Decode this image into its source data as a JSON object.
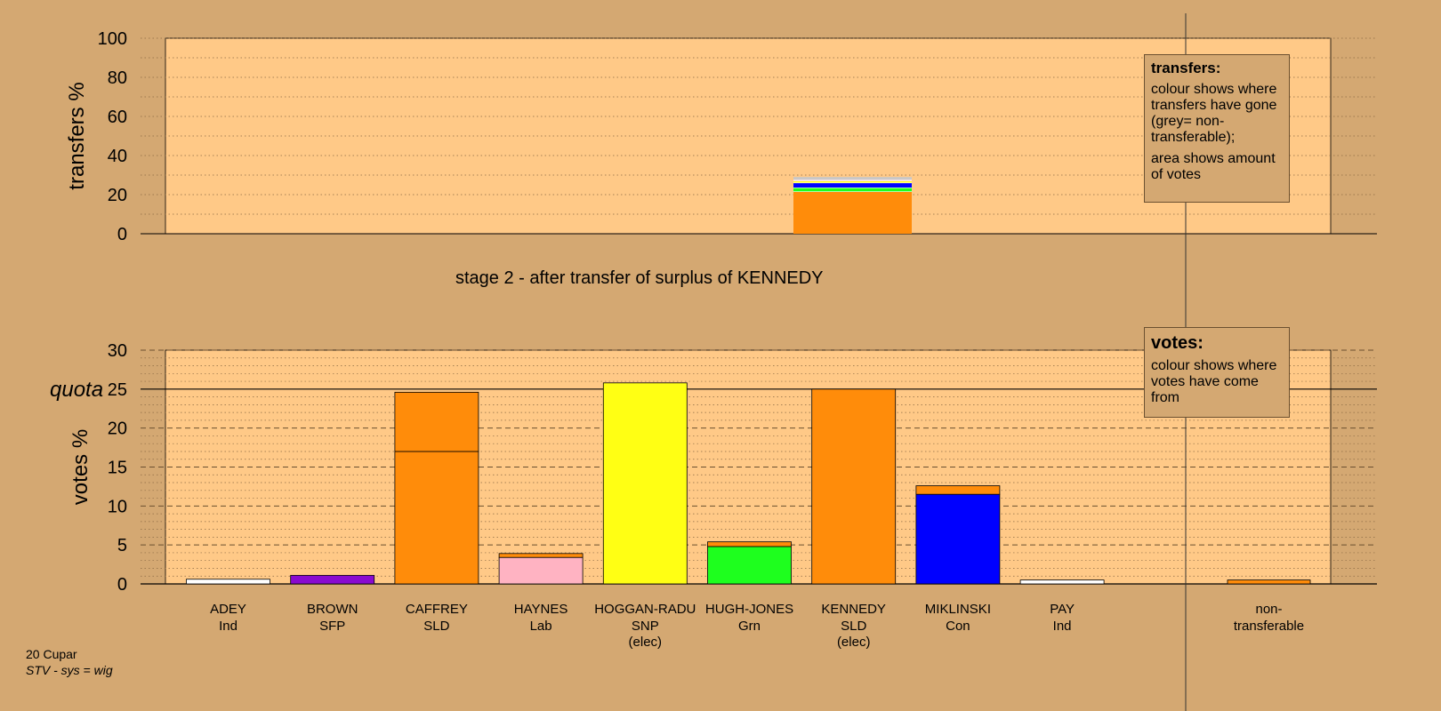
{
  "stage_title": "stage 2 - after transfer of surplus of KENNEDY",
  "footer": {
    "line1": "20 Cupar",
    "line2": "STV - sys = wig"
  },
  "legend_transfers": {
    "title": "transfers:",
    "p1": "colour shows where transfers have gone (grey= non-transferable);",
    "p2": "area shows amount of votes"
  },
  "legend_votes": {
    "title": "votes:",
    "p1": "colour shows where votes have come from"
  },
  "colors": {
    "background": "#d4a872",
    "plot_bg": "#ffc987",
    "SLD": "#ff8c0a",
    "SNP": "#ffff14",
    "Grn": "#1eff1e",
    "Con": "#0000ff",
    "Lab": "#ffb3c2",
    "SFP": "#8a0ad0",
    "Ind": "#ffffff"
  },
  "chart_data": [
    {
      "type": "bar",
      "stacked": true,
      "ylabel": "transfers %",
      "ylim": [
        0,
        100
      ],
      "yticks": [
        0,
        20,
        40,
        60,
        80,
        100
      ],
      "grid": "dotted",
      "column": "KENNEDY",
      "segments": [
        {
          "to": "SLD",
          "color": "#ff8c0a",
          "value": 21.5
        },
        {
          "to": "Grn",
          "color": "#1eff1e",
          "value": 2
        },
        {
          "to": "Con",
          "color": "#0000ff",
          "value": 2.5
        },
        {
          "to": "SNP",
          "color": "#ffff14",
          "value": 1
        },
        {
          "to": "Lab",
          "color": "#ffb3c2",
          "value": 0.5
        },
        {
          "to": "non-transferable",
          "color": "#c8c8c8",
          "value": 1.5
        }
      ]
    },
    {
      "type": "bar",
      "stacked": true,
      "ylabel": "votes %",
      "ylim": [
        0,
        30
      ],
      "yticks": [
        0,
        5,
        10,
        15,
        20,
        25,
        30
      ],
      "quota": 25,
      "quota_label": "quota",
      "categories": [
        {
          "name": "ADEY",
          "party": "Ind",
          "elec": ""
        },
        {
          "name": "BROWN",
          "party": "SFP",
          "elec": ""
        },
        {
          "name": "CAFFREY",
          "party": "SLD",
          "elec": ""
        },
        {
          "name": "HAYNES",
          "party": "Lab",
          "elec": ""
        },
        {
          "name": "HOGGAN-RADU",
          "party": "SNP",
          "elec": "(elec)"
        },
        {
          "name": "HUGH-JONES",
          "party": "Grn",
          "elec": ""
        },
        {
          "name": "KENNEDY",
          "party": "SLD",
          "elec": "(elec)"
        },
        {
          "name": "MIKLINSKI",
          "party": "Con",
          "elec": ""
        },
        {
          "name": "PAY",
          "party": "Ind",
          "elec": ""
        }
      ],
      "nontransferable_label": [
        "non-",
        "transferable"
      ],
      "stacks": [
        [
          {
            "color": "#ffffff",
            "value": 0.6
          }
        ],
        [
          {
            "color": "#8a0ad0",
            "value": 1.1
          }
        ],
        [
          {
            "color": "#ff8c0a",
            "value": 17.0
          },
          {
            "color": "#ff8c0a",
            "value": 7.6
          }
        ],
        [
          {
            "color": "#ffb3c2",
            "value": 3.4
          },
          {
            "color": "#ff8c0a",
            "value": 0.5
          }
        ],
        [
          {
            "color": "#ffff14",
            "value": 25.8
          }
        ],
        [
          {
            "color": "#1eff1e",
            "value": 4.8
          },
          {
            "color": "#ff8c0a",
            "value": 0.6
          }
        ],
        [
          {
            "color": "#ff8c0a",
            "value": 25.0
          }
        ],
        [
          {
            "color": "#0000ff",
            "value": 11.5
          },
          {
            "color": "#ff8c0a",
            "value": 1.1
          }
        ],
        [
          {
            "color": "#ffffff",
            "value": 0.5
          }
        ]
      ],
      "nontransferable": [
        {
          "color": "#ff8c0a",
          "value": 0.5
        }
      ]
    }
  ]
}
